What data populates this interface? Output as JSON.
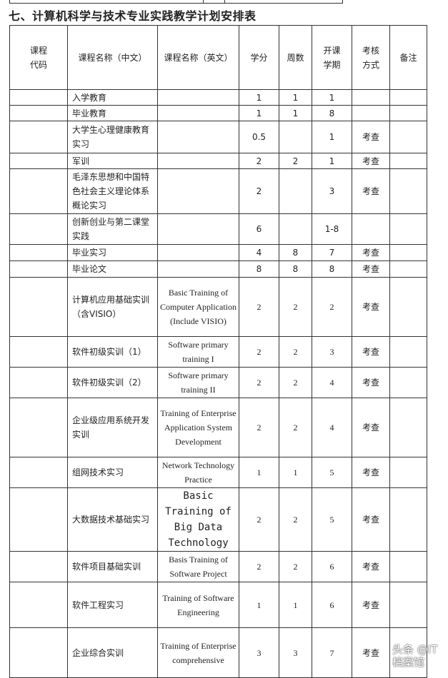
{
  "title": "七、计算机科学与技术专业实践教学计划安排表",
  "headers": [
    "课程\n代码",
    "课程名称（中文）",
    "课程名称（英文）",
    "学分",
    "周数",
    "开课\n学期",
    "考核\n方式",
    "备注"
  ],
  "rows": [
    {
      "code": "",
      "cn": "入学教育",
      "en": "",
      "credit": "1",
      "weeks": "1",
      "term": "1",
      "exam": "",
      "note": ""
    },
    {
      "code": "",
      "cn": "毕业教育",
      "en": "",
      "credit": "1",
      "weeks": "1",
      "term": "8",
      "exam": "",
      "note": ""
    },
    {
      "code": "",
      "cn": "大学生心理健康教育实习",
      "en": "",
      "credit": "0.5",
      "weeks": "",
      "term": "1",
      "exam": "考查",
      "note": ""
    },
    {
      "code": "",
      "cn": "军训",
      "en": "",
      "credit": "2",
      "weeks": "2",
      "term": "1",
      "exam": "考查",
      "note": ""
    },
    {
      "code": "",
      "cn": "毛泽东思想和中国特色社会主义理论体系概论实习",
      "en": "",
      "credit": "2",
      "weeks": "",
      "term": "3",
      "exam": "考查",
      "note": ""
    },
    {
      "code": "",
      "cn": "创新创业与第二课堂实践",
      "en": "",
      "credit": "6",
      "weeks": "",
      "term": "1-8",
      "exam": "",
      "note": ""
    },
    {
      "code": "",
      "cn": "毕业实习",
      "en": "",
      "credit": "4",
      "weeks": "8",
      "term": "7",
      "exam": "考查",
      "note": ""
    },
    {
      "code": "",
      "cn": "毕业论文",
      "en": "",
      "credit": "8",
      "weeks": "8",
      "term": "8",
      "exam": "考查",
      "note": ""
    },
    {
      "code": "",
      "cn": "计算机应用基础实训（含VISIO）",
      "en": "Basic Training of Computer Application (Include VISIO)",
      "credit": "2",
      "weeks": "2",
      "term": "2",
      "exam": "考查",
      "note": ""
    },
    {
      "code": "",
      "cn": "软件初级实训（1）",
      "en": "Software primary training I",
      "credit": "2",
      "weeks": "2",
      "term": "3",
      "exam": "考查",
      "note": ""
    },
    {
      "code": "",
      "cn": "软件初级实训（2）",
      "en": "Software primary training II",
      "credit": "2",
      "weeks": "2",
      "term": "4",
      "exam": "考查",
      "note": ""
    },
    {
      "code": "",
      "cn": "企业级应用系统开发实训",
      "en": "Training of Enterprise Application System Development",
      "credit": "2",
      "weeks": "2",
      "term": "4",
      "exam": "考查",
      "note": ""
    },
    {
      "code": "",
      "cn": "组网技术实习",
      "en": "Network Technology Practice",
      "credit": "1",
      "weeks": "1",
      "term": "5",
      "exam": "考查",
      "note": ""
    },
    {
      "code": "",
      "cn": "大数据技术基础实习",
      "en": "Basic Training of Big Data Technology",
      "credit": "2",
      "weeks": "2",
      "term": "5",
      "exam": "考查",
      "note": ""
    },
    {
      "code": "",
      "cn": "软件项目基础实训",
      "en": "Basis Training of Software Project",
      "credit": "2",
      "weeks": "2",
      "term": "6",
      "exam": "考查",
      "note": ""
    },
    {
      "code": "",
      "cn": "软件工程实习",
      "en": "Training of Software Engineering",
      "credit": "1",
      "weeks": "1",
      "term": "6",
      "exam": "考查",
      "note": ""
    },
    {
      "code": "",
      "cn": "企业综合实训",
      "en": "Training of Enterprise comprehensive",
      "credit": "3",
      "weeks": "3",
      "term": "7",
      "exam": "考查",
      "note": ""
    }
  ],
  "watermark": "头条 @IT档案馆"
}
